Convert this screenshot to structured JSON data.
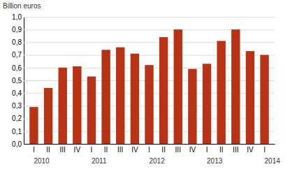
{
  "chart_data": {
    "type": "bar",
    "ylabel": "Billion euros",
    "categories": [
      "I",
      "II",
      "III",
      "IV",
      "I",
      "II",
      "III",
      "IV",
      "I",
      "II",
      "III",
      "IV",
      "I",
      "II",
      "III",
      "IV",
      "I"
    ],
    "values": [
      0.29,
      0.44,
      0.6,
      0.61,
      0.53,
      0.74,
      0.76,
      0.71,
      0.62,
      0.84,
      0.9,
      0.59,
      0.63,
      0.81,
      0.9,
      0.73,
      0.7
    ],
    "color": "#b83215",
    "ylim": [
      0,
      1.0
    ],
    "yticks": [
      {
        "value": 0.0,
        "label": "0,0"
      },
      {
        "value": 0.1,
        "label": "0,1"
      },
      {
        "value": 0.2,
        "label": "0,2"
      },
      {
        "value": 0.3,
        "label": "0,3"
      },
      {
        "value": 0.4,
        "label": "0,4"
      },
      {
        "value": 0.5,
        "label": "0,5"
      },
      {
        "value": 0.6,
        "label": "0,6"
      },
      {
        "value": 0.7,
        "label": "0,7"
      },
      {
        "value": 0.8,
        "label": "0,8"
      },
      {
        "value": 0.9,
        "label": "0,9"
      },
      {
        "value": 1.0,
        "label": "1,0"
      }
    ],
    "grid": true,
    "annotations": [
      {
        "text": "2010",
        "x": 0
      },
      {
        "text": "2011",
        "x": 4
      },
      {
        "text": "2012",
        "x": 8
      },
      {
        "text": "2013",
        "x": 12
      },
      {
        "text": "2014",
        "x": 16
      }
    ]
  }
}
